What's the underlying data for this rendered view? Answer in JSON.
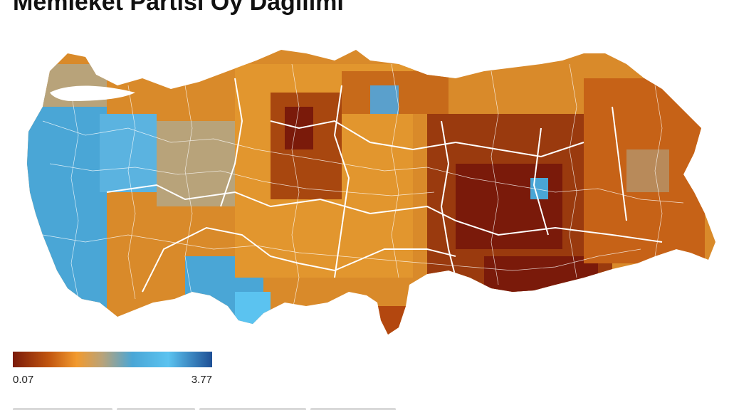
{
  "title": "Memleket Partisi Oy Dağılımı",
  "legend": {
    "min_label": "0.07",
    "max_label": "3.77",
    "min": 0.07,
    "max": 3.77,
    "gradient_colors": [
      "#7a1a0a",
      "#c1550f",
      "#f29a2e",
      "#b8a37a",
      "#4aa6d6",
      "#5bc3f0",
      "#2e6db5",
      "#1e4f95"
    ]
  },
  "colors": {
    "border_white": "#ffffff",
    "water": "#3aa3d6",
    "dark_red": "#7a1a0a",
    "orange": "#e28a22"
  }
}
